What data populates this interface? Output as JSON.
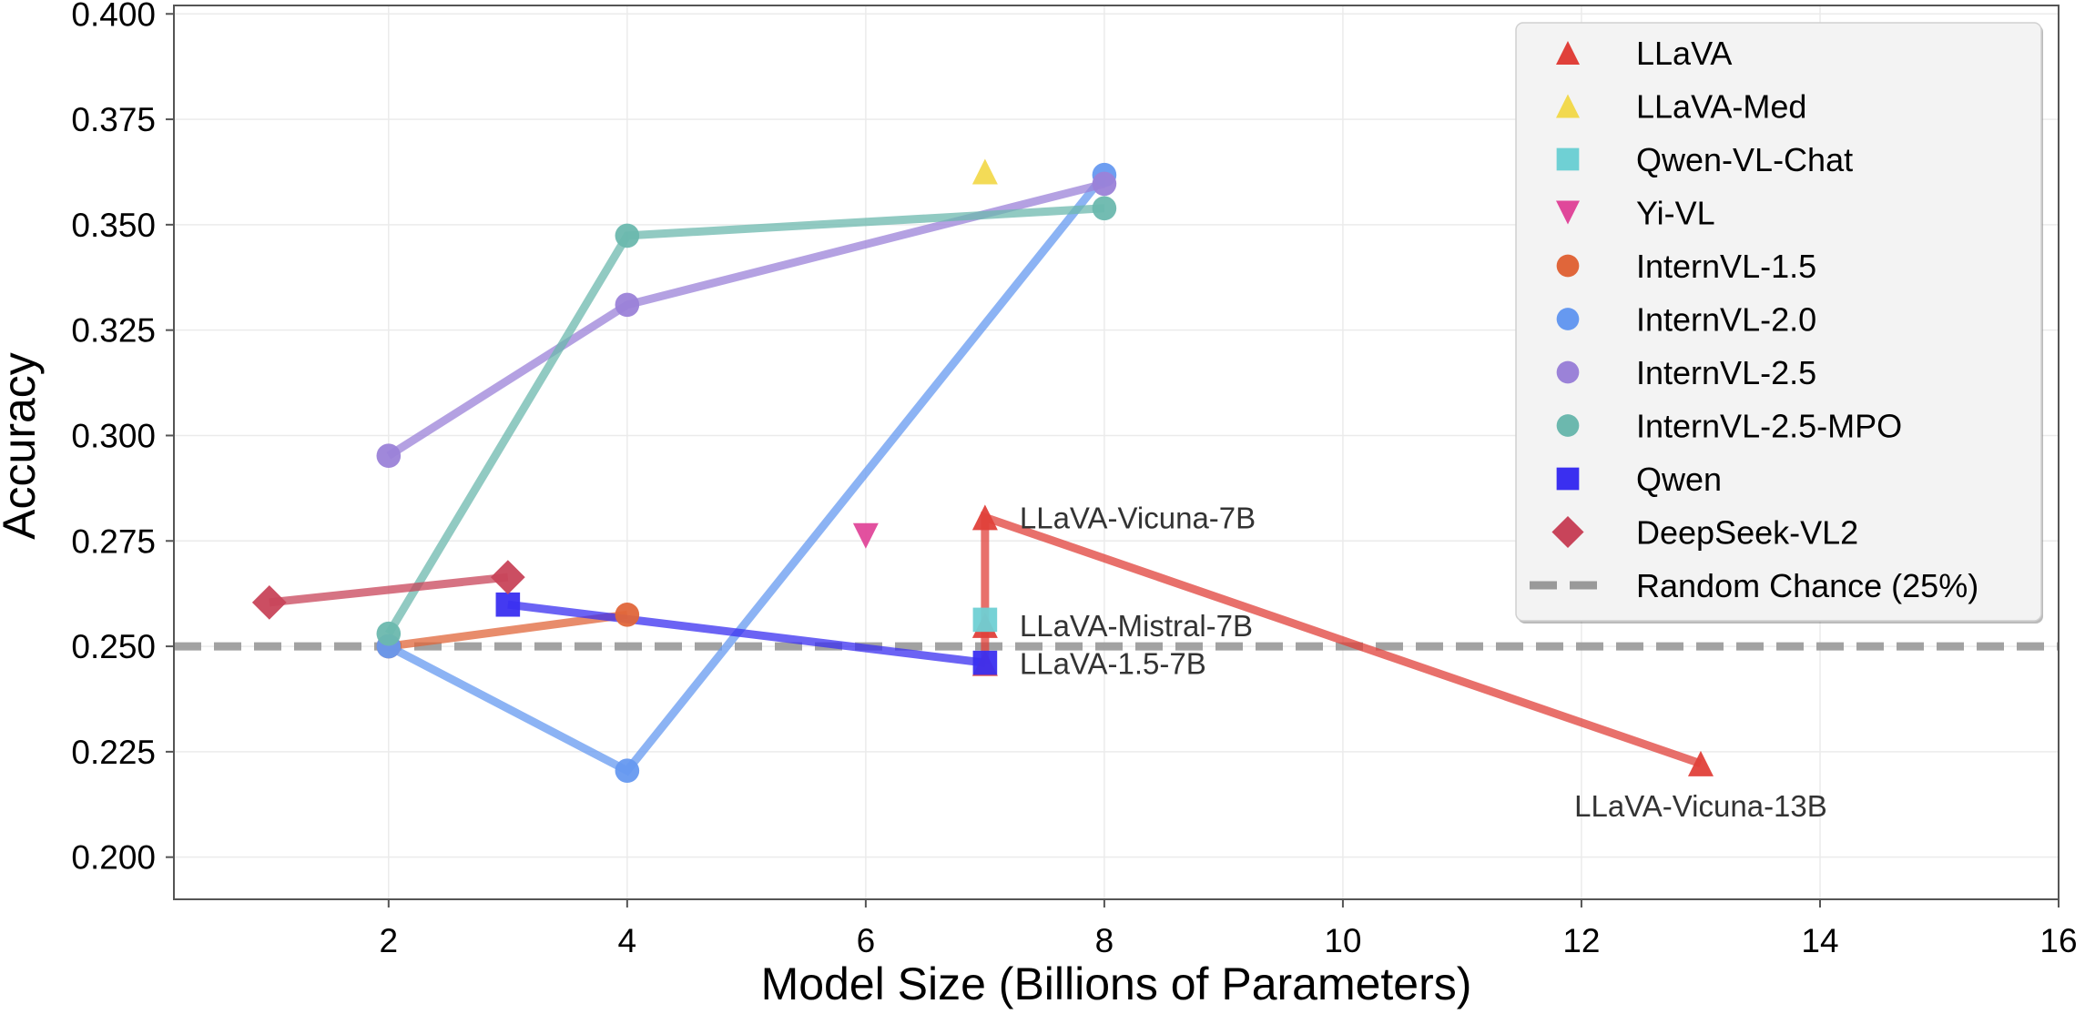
{
  "chart_data": {
    "type": "line",
    "title": "",
    "xlabel": "Model Size (Billions of Parameters)",
    "ylabel": "Accuracy",
    "xlim": [
      0.2,
      16
    ],
    "ylim": [
      0.19,
      0.402
    ],
    "xticks": [
      2,
      4,
      6,
      8,
      10,
      12,
      14,
      16
    ],
    "xtick_labels": [
      "2",
      "4",
      "6",
      "8",
      "10",
      "12",
      "14",
      "16"
    ],
    "yticks": [
      0.2,
      0.225,
      0.25,
      0.275,
      0.3,
      0.325,
      0.35,
      0.375,
      0.4
    ],
    "ytick_labels": [
      "0.200",
      "0.225",
      "0.250",
      "0.275",
      "0.300",
      "0.325",
      "0.350",
      "0.375",
      "0.400"
    ],
    "grid": true,
    "legend_position": "top-right",
    "series": [
      {
        "name": "LLaVA",
        "marker": "triangle-up",
        "color": "#e0403a",
        "line": true,
        "points": [
          {
            "x": 7,
            "y": 0.246
          },
          {
            "x": 7,
            "y": 0.255
          },
          {
            "x": 7,
            "y": 0.2806
          },
          {
            "x": 13,
            "y": 0.2222
          }
        ]
      },
      {
        "name": "LLaVA-Med",
        "marker": "triangle-up",
        "color": "#f2d94e",
        "line": false,
        "points": [
          {
            "x": 7,
            "y": 0.3626
          }
        ]
      },
      {
        "name": "Qwen-VL-Chat",
        "marker": "square",
        "color": "#6fd0d4",
        "line": false,
        "points": [
          {
            "x": 7,
            "y": 0.2563
          }
        ]
      },
      {
        "name": "Yi-VL",
        "marker": "triangle-down",
        "color": "#e0489a",
        "line": false,
        "points": [
          {
            "x": 6,
            "y": 0.2762
          }
        ]
      },
      {
        "name": "InternVL-1.5",
        "marker": "circle",
        "color": "#e0663a",
        "line": true,
        "points": [
          {
            "x": 2,
            "y": 0.25
          },
          {
            "x": 4,
            "y": 0.2575
          }
        ]
      },
      {
        "name": "InternVL-2.0",
        "marker": "circle",
        "color": "#6699f0",
        "line": true,
        "points": [
          {
            "x": 2,
            "y": 0.25
          },
          {
            "x": 4,
            "y": 0.2205
          },
          {
            "x": 8,
            "y": 0.3618
          }
        ]
      },
      {
        "name": "InternVL-2.5",
        "marker": "circle",
        "color": "#9b82d8",
        "line": true,
        "points": [
          {
            "x": 2,
            "y": 0.2952
          },
          {
            "x": 4,
            "y": 0.331
          },
          {
            "x": 8,
            "y": 0.3597
          }
        ]
      },
      {
        "name": "InternVL-2.5-MPO",
        "marker": "circle",
        "color": "#6cb8ae",
        "line": true,
        "points": [
          {
            "x": 2,
            "y": 0.253
          },
          {
            "x": 4,
            "y": 0.3474
          },
          {
            "x": 8,
            "y": 0.3539
          }
        ]
      },
      {
        "name": "Qwen",
        "marker": "square",
        "color": "#3a2ff0",
        "line": true,
        "points": [
          {
            "x": 3,
            "y": 0.2599
          },
          {
            "x": 7,
            "y": 0.2461
          }
        ]
      },
      {
        "name": "DeepSeek-VL2",
        "marker": "diamond",
        "color": "#c8445a",
        "line": true,
        "points": [
          {
            "x": 1,
            "y": 0.2604
          },
          {
            "x": 3,
            "y": 0.2664
          }
        ]
      }
    ],
    "reference_line": {
      "name": "Random Chance (25%)",
      "y": 0.25,
      "style": "dashed",
      "color": "#999999"
    },
    "annotations": [
      {
        "text": "LLaVA-Vicuna-7B",
        "x": 7,
        "y": 0.2806,
        "anchor": "right"
      },
      {
        "text": "LLaVA-Mistral-7B",
        "x": 7,
        "y": 0.255,
        "anchor": "right"
      },
      {
        "text": "LLaVA-1.5-7B",
        "x": 7,
        "y": 0.246,
        "anchor": "right"
      },
      {
        "text": "LLaVA-Vicuna-13B",
        "x": 13,
        "y": 0.2222,
        "anchor": "below"
      }
    ],
    "legend": [
      "LLaVA",
      "LLaVA-Med",
      "Qwen-VL-Chat",
      "Yi-VL",
      "InternVL-1.5",
      "InternVL-2.0",
      "InternVL-2.5",
      "InternVL-2.5-MPO",
      "Qwen",
      "DeepSeek-VL2",
      "Random Chance (25%)"
    ]
  }
}
